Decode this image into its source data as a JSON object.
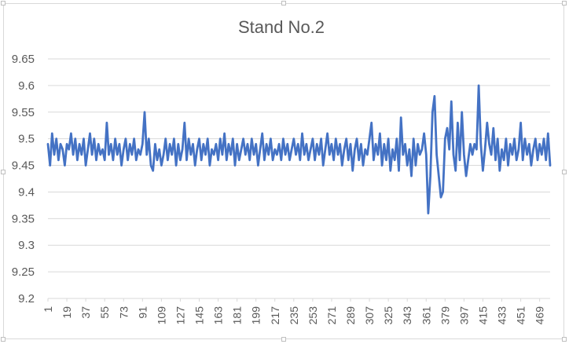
{
  "chart_data": {
    "type": "line",
    "title": "Stand No.2",
    "xlabel": "",
    "ylabel": "",
    "ylim": [
      9.2,
      9.65
    ],
    "yticks": [
      "9.65",
      "9.6",
      "9.55",
      "9.5",
      "9.45",
      "9.4",
      "9.35",
      "9.3",
      "9.25",
      "9.2"
    ],
    "xtick_labels": [
      "1",
      "19",
      "37",
      "55",
      "73",
      "91",
      "109",
      "127",
      "145",
      "163",
      "181",
      "199",
      "217",
      "235",
      "253",
      "271",
      "289",
      "307",
      "325",
      "343",
      "361",
      "379",
      "397",
      "415",
      "433",
      "451",
      "469"
    ],
    "x_range": [
      1,
      479
    ],
    "grid": "horizontal",
    "legend": "none",
    "series": [
      {
        "color": "#4472C4",
        "points": [
          [
            1,
            9.49
          ],
          [
            3,
            9.45
          ],
          [
            5,
            9.51
          ],
          [
            7,
            9.47
          ],
          [
            9,
            9.5
          ],
          [
            11,
            9.46
          ],
          [
            13,
            9.49
          ],
          [
            15,
            9.48
          ],
          [
            17,
            9.45
          ],
          [
            19,
            9.49
          ],
          [
            21,
            9.48
          ],
          [
            23,
            9.51
          ],
          [
            25,
            9.47
          ],
          [
            27,
            9.5
          ],
          [
            29,
            9.46
          ],
          [
            31,
            9.49
          ],
          [
            33,
            9.47
          ],
          [
            35,
            9.5
          ],
          [
            37,
            9.45
          ],
          [
            39,
            9.48
          ],
          [
            41,
            9.51
          ],
          [
            43,
            9.47
          ],
          [
            45,
            9.5
          ],
          [
            47,
            9.46
          ],
          [
            49,
            9.49
          ],
          [
            51,
            9.47
          ],
          [
            53,
            9.48
          ],
          [
            55,
            9.46
          ],
          [
            57,
            9.53
          ],
          [
            59,
            9.47
          ],
          [
            61,
            9.49
          ],
          [
            63,
            9.46
          ],
          [
            65,
            9.5
          ],
          [
            67,
            9.47
          ],
          [
            69,
            9.49
          ],
          [
            71,
            9.45
          ],
          [
            73,
            9.48
          ],
          [
            75,
            9.5
          ],
          [
            77,
            9.46
          ],
          [
            79,
            9.49
          ],
          [
            81,
            9.47
          ],
          [
            83,
            9.5
          ],
          [
            85,
            9.46
          ],
          [
            87,
            9.48
          ],
          [
            89,
            9.47
          ],
          [
            91,
            9.49
          ],
          [
            93,
            9.55
          ],
          [
            95,
            9.47
          ],
          [
            97,
            9.5
          ],
          [
            99,
            9.45
          ],
          [
            101,
            9.44
          ],
          [
            103,
            9.49
          ],
          [
            105,
            9.46
          ],
          [
            107,
            9.48
          ],
          [
            109,
            9.45
          ],
          [
            111,
            9.47
          ],
          [
            113,
            9.5
          ],
          [
            115,
            9.46
          ],
          [
            117,
            9.49
          ],
          [
            119,
            9.47
          ],
          [
            121,
            9.5
          ],
          [
            123,
            9.45
          ],
          [
            125,
            9.49
          ],
          [
            127,
            9.46
          ],
          [
            129,
            9.48
          ],
          [
            131,
            9.53
          ],
          [
            133,
            9.46
          ],
          [
            135,
            9.5
          ],
          [
            137,
            9.47
          ],
          [
            139,
            9.49
          ],
          [
            141,
            9.45
          ],
          [
            143,
            9.48
          ],
          [
            145,
            9.5
          ],
          [
            147,
            9.46
          ],
          [
            149,
            9.49
          ],
          [
            151,
            9.47
          ],
          [
            153,
            9.5
          ],
          [
            155,
            9.45
          ],
          [
            157,
            9.48
          ],
          [
            159,
            9.47
          ],
          [
            161,
            9.49
          ],
          [
            163,
            9.46
          ],
          [
            165,
            9.5
          ],
          [
            167,
            9.47
          ],
          [
            169,
            9.51
          ],
          [
            171,
            9.46
          ],
          [
            173,
            9.49
          ],
          [
            175,
            9.47
          ],
          [
            177,
            9.5
          ],
          [
            179,
            9.45
          ],
          [
            181,
            9.49
          ],
          [
            183,
            9.46
          ],
          [
            185,
            9.48
          ],
          [
            187,
            9.5
          ],
          [
            189,
            9.47
          ],
          [
            191,
            9.49
          ],
          [
            193,
            9.46
          ],
          [
            195,
            9.5
          ],
          [
            197,
            9.47
          ],
          [
            199,
            9.49
          ],
          [
            201,
            9.45
          ],
          [
            203,
            9.48
          ],
          [
            205,
            9.51
          ],
          [
            207,
            9.46
          ],
          [
            209,
            9.49
          ],
          [
            211,
            9.47
          ],
          [
            213,
            9.5
          ],
          [
            215,
            9.46
          ],
          [
            217,
            9.48
          ],
          [
            219,
            9.47
          ],
          [
            221,
            9.49
          ],
          [
            223,
            9.46
          ],
          [
            225,
            9.5
          ],
          [
            227,
            9.47
          ],
          [
            229,
            9.49
          ],
          [
            231,
            9.46
          ],
          [
            233,
            9.48
          ],
          [
            235,
            9.5
          ],
          [
            237,
            9.47
          ],
          [
            239,
            9.49
          ],
          [
            241,
            9.46
          ],
          [
            243,
            9.51
          ],
          [
            245,
            9.47
          ],
          [
            247,
            9.49
          ],
          [
            249,
            9.46
          ],
          [
            251,
            9.48
          ],
          [
            253,
            9.5
          ],
          [
            255,
            9.46
          ],
          [
            257,
            9.49
          ],
          [
            259,
            9.47
          ],
          [
            261,
            9.5
          ],
          [
            263,
            9.45
          ],
          [
            265,
            9.48
          ],
          [
            267,
            9.51
          ],
          [
            269,
            9.47
          ],
          [
            271,
            9.49
          ],
          [
            273,
            9.46
          ],
          [
            275,
            9.5
          ],
          [
            277,
            9.47
          ],
          [
            279,
            9.49
          ],
          [
            281,
            9.45
          ],
          [
            283,
            9.48
          ],
          [
            285,
            9.5
          ],
          [
            287,
            9.46
          ],
          [
            289,
            9.49
          ],
          [
            291,
            9.44
          ],
          [
            293,
            9.48
          ],
          [
            295,
            9.5
          ],
          [
            297,
            9.46
          ],
          [
            299,
            9.49
          ],
          [
            301,
            9.45
          ],
          [
            303,
            9.48
          ],
          [
            305,
            9.47
          ],
          [
            307,
            9.5
          ],
          [
            309,
            9.53
          ],
          [
            311,
            9.46
          ],
          [
            313,
            9.49
          ],
          [
            315,
            9.47
          ],
          [
            317,
            9.51
          ],
          [
            319,
            9.45
          ],
          [
            321,
            9.49
          ],
          [
            323,
            9.46
          ],
          [
            325,
            9.5
          ],
          [
            327,
            9.44
          ],
          [
            329,
            9.48
          ],
          [
            331,
            9.46
          ],
          [
            333,
            9.5
          ],
          [
            335,
            9.44
          ],
          [
            337,
            9.54
          ],
          [
            339,
            9.47
          ],
          [
            341,
            9.49
          ],
          [
            343,
            9.45
          ],
          [
            345,
            9.48
          ],
          [
            347,
            9.43
          ],
          [
            349,
            9.5
          ],
          [
            351,
            9.45
          ],
          [
            353,
            9.49
          ],
          [
            355,
            9.47
          ],
          [
            357,
            9.48
          ],
          [
            359,
            9.51
          ],
          [
            361,
            9.47
          ],
          [
            363,
            9.36
          ],
          [
            365,
            9.43
          ],
          [
            367,
            9.55
          ],
          [
            369,
            9.58
          ],
          [
            371,
            9.47
          ],
          [
            373,
            9.43
          ],
          [
            375,
            9.39
          ],
          [
            377,
            9.4
          ],
          [
            379,
            9.5
          ],
          [
            381,
            9.52
          ],
          [
            383,
            9.48
          ],
          [
            385,
            9.57
          ],
          [
            387,
            9.47
          ],
          [
            389,
            9.44
          ],
          [
            391,
            9.53
          ],
          [
            393,
            9.46
          ],
          [
            395,
            9.55
          ],
          [
            397,
            9.47
          ],
          [
            399,
            9.43
          ],
          [
            401,
            9.46
          ],
          [
            403,
            9.49
          ],
          [
            405,
            9.47
          ],
          [
            407,
            9.49
          ],
          [
            409,
            9.48
          ],
          [
            411,
            9.6
          ],
          [
            413,
            9.49
          ],
          [
            415,
            9.44
          ],
          [
            417,
            9.48
          ],
          [
            419,
            9.53
          ],
          [
            421,
            9.49
          ],
          [
            423,
            9.47
          ],
          [
            425,
            9.52
          ],
          [
            427,
            9.46
          ],
          [
            429,
            9.5
          ],
          [
            431,
            9.44
          ],
          [
            433,
            9.48
          ],
          [
            435,
            9.46
          ],
          [
            437,
            9.5
          ],
          [
            439,
            9.45
          ],
          [
            441,
            9.49
          ],
          [
            443,
            9.47
          ],
          [
            445,
            9.5
          ],
          [
            447,
            9.46
          ],
          [
            449,
            9.48
          ],
          [
            451,
            9.53
          ],
          [
            453,
            9.46
          ],
          [
            455,
            9.5
          ],
          [
            457,
            9.47
          ],
          [
            459,
            9.49
          ],
          [
            461,
            9.45
          ],
          [
            463,
            9.48
          ],
          [
            465,
            9.5
          ],
          [
            467,
            9.46
          ],
          [
            469,
            9.49
          ],
          [
            471,
            9.47
          ],
          [
            473,
            9.5
          ],
          [
            475,
            9.46
          ],
          [
            477,
            9.51
          ],
          [
            479,
            9.45
          ]
        ]
      }
    ]
  }
}
